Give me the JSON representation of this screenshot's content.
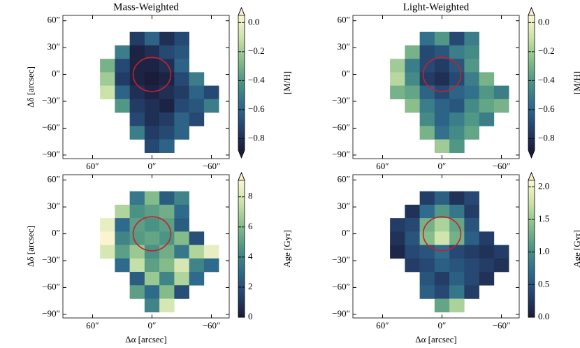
{
  "colormap": [
    "#1a1c3a",
    "#25426e",
    "#2e6b8c",
    "#4a9384",
    "#86bd8a",
    "#c9e2a8",
    "#fdf6d3"
  ],
  "chart_data": [
    {
      "type": "heatmap",
      "title": "Mass-Weighted",
      "ylabel": "Δδ [arcsec]",
      "colorbar_label": "[M/H]",
      "x": [
        45,
        30,
        15,
        0,
        -15,
        -30,
        -45,
        -60
      ],
      "y": [
        40,
        25,
        10,
        -5,
        -20,
        -35,
        -50,
        -65,
        -80
      ],
      "values": [
        [
          null,
          null,
          -0.75,
          -0.6,
          -0.8,
          -0.7,
          null,
          null
        ],
        [
          null,
          -0.5,
          -0.85,
          -0.8,
          -0.7,
          -0.65,
          null,
          null
        ],
        [
          -0.3,
          -0.7,
          -0.85,
          -0.85,
          -0.8,
          -0.6,
          null,
          null
        ],
        [
          -0.2,
          -0.75,
          -0.85,
          -0.88,
          -0.85,
          -0.7,
          -0.5,
          null
        ],
        [
          -0.1,
          -0.6,
          -0.8,
          -0.85,
          -0.8,
          -0.75,
          -0.6,
          -0.7
        ],
        [
          null,
          -0.4,
          -0.75,
          -0.8,
          -0.85,
          -0.7,
          -0.65,
          -0.5
        ],
        [
          null,
          null,
          -0.7,
          -0.8,
          -0.75,
          -0.6,
          -0.7,
          null
        ],
        [
          null,
          null,
          -0.5,
          -0.75,
          -0.7,
          -0.6,
          null,
          null
        ],
        [
          null,
          null,
          null,
          -0.7,
          -0.6,
          null,
          null,
          null
        ]
      ],
      "xlim": [
        90,
        -78
      ],
      "ylim": [
        -94,
        66
      ],
      "xticks": [
        {
          "value": 60,
          "label": "60″"
        },
        {
          "value": 0,
          "label": "0″"
        },
        {
          "value": -60,
          "label": "−60″"
        }
      ],
      "yticks": [
        {
          "value": 60,
          "label": "60″"
        },
        {
          "value": 30,
          "label": "30″"
        },
        {
          "value": 0,
          "label": "0″"
        },
        {
          "value": -30,
          "label": "−30″"
        },
        {
          "value": -60,
          "label": "−60″"
        },
        {
          "value": -90,
          "label": "−90″"
        }
      ],
      "clim": [
        -0.88,
        0.05
      ],
      "cticks": [
        {
          "value": 0,
          "label": "0.0"
        },
        {
          "value": -0.2,
          "label": "−0.2"
        },
        {
          "value": -0.4,
          "label": "−0.4"
        },
        {
          "value": -0.6,
          "label": "−0.6"
        },
        {
          "value": -0.8,
          "label": "−0.8"
        }
      ],
      "extend": "both",
      "circle": {
        "x": 0,
        "y": 0,
        "r": 19,
        "color": "#c8202a"
      }
    },
    {
      "type": "heatmap",
      "title": "Light-Weighted",
      "colorbar_label": "[M/H]",
      "x": [
        45,
        30,
        15,
        0,
        -15,
        -30,
        -45,
        -60
      ],
      "y": [
        40,
        25,
        10,
        -5,
        -20,
        -35,
        -50,
        -65,
        -80
      ],
      "values": [
        [
          null,
          null,
          -0.55,
          -0.4,
          -0.7,
          -0.5,
          null,
          null
        ],
        [
          null,
          -0.3,
          -0.7,
          -0.65,
          -0.5,
          -0.45,
          null,
          null
        ],
        [
          -0.2,
          -0.5,
          -0.7,
          -0.75,
          -0.65,
          -0.4,
          null,
          null
        ],
        [
          -0.15,
          -0.45,
          -0.75,
          -0.8,
          -0.7,
          -0.5,
          -0.3,
          null
        ],
        [
          -0.3,
          -0.35,
          -0.6,
          -0.7,
          -0.6,
          -0.55,
          -0.4,
          -0.5
        ],
        [
          null,
          -0.25,
          -0.5,
          -0.6,
          -0.65,
          -0.45,
          -0.35,
          -0.3
        ],
        [
          null,
          null,
          -0.45,
          -0.6,
          -0.5,
          -0.4,
          -0.5,
          null
        ],
        [
          null,
          null,
          -0.3,
          -0.55,
          -0.45,
          -0.35,
          null,
          null
        ],
        [
          null,
          null,
          null,
          -0.2,
          -0.4,
          null,
          null,
          null
        ]
      ],
      "xlim": [
        90,
        -78
      ],
      "ylim": [
        -94,
        66
      ],
      "xticks": [
        {
          "value": 60,
          "label": "60″"
        },
        {
          "value": 0,
          "label": "0″"
        },
        {
          "value": -60,
          "label": "−60″"
        }
      ],
      "yticks": [
        {
          "value": 60,
          "label": "60″"
        },
        {
          "value": 30,
          "label": "30″"
        },
        {
          "value": 0,
          "label": "0″"
        },
        {
          "value": -30,
          "label": "−30″"
        },
        {
          "value": -60,
          "label": "−60″"
        },
        {
          "value": -90,
          "label": "−90″"
        }
      ],
      "clim": [
        -0.88,
        0.05
      ],
      "cticks": [
        {
          "value": 0,
          "label": "0.0"
        },
        {
          "value": -0.2,
          "label": "−0.2"
        },
        {
          "value": -0.4,
          "label": "−0.4"
        },
        {
          "value": -0.6,
          "label": "−0.6"
        },
        {
          "value": -0.8,
          "label": "−0.8"
        }
      ],
      "extend": "both",
      "circle": {
        "x": 0,
        "y": 0,
        "r": 19,
        "color": "#c8202a"
      }
    },
    {
      "type": "heatmap",
      "ylabel": "Δδ [arcsec]",
      "xlabel": "Δα [arcsec]",
      "colorbar_label": "Age [Gyr]",
      "x": [
        45,
        30,
        15,
        0,
        -15,
        -30,
        -45,
        -60
      ],
      "y": [
        40,
        25,
        10,
        -5,
        -20,
        -35,
        -50,
        -65,
        -80
      ],
      "values": [
        [
          null,
          null,
          3.5,
          6,
          2.5,
          4,
          null,
          null
        ],
        [
          null,
          7,
          4.5,
          5,
          5.5,
          3,
          null,
          null
        ],
        [
          8.5,
          3,
          5,
          4.5,
          5,
          2.5,
          null,
          null
        ],
        [
          9,
          4,
          4.8,
          5.2,
          4.6,
          6,
          2,
          null
        ],
        [
          8,
          5,
          6.5,
          4.5,
          5.5,
          3.5,
          7,
          8.5
        ],
        [
          null,
          3,
          7.5,
          5,
          6,
          8,
          4,
          3
        ],
        [
          null,
          null,
          2.5,
          6.5,
          4,
          7,
          3,
          null
        ],
        [
          null,
          null,
          5,
          3,
          6,
          2,
          null,
          null
        ],
        [
          null,
          null,
          null,
          4,
          8,
          null,
          null,
          null
        ]
      ],
      "xlim": [
        90,
        -78
      ],
      "ylim": [
        -94,
        66
      ],
      "xticks": [
        {
          "value": 60,
          "label": "60″"
        },
        {
          "value": 0,
          "label": "0″"
        },
        {
          "value": -60,
          "label": "−60″"
        }
      ],
      "yticks": [
        {
          "value": 60,
          "label": "60″"
        },
        {
          "value": 30,
          "label": "30″"
        },
        {
          "value": 0,
          "label": "0″"
        },
        {
          "value": -30,
          "label": "−30″"
        },
        {
          "value": -60,
          "label": "−60″"
        },
        {
          "value": -90,
          "label": "−90″"
        }
      ],
      "clim": [
        0,
        9.1
      ],
      "cticks": [
        0,
        2,
        4,
        6,
        8
      ],
      "extend": "max",
      "circle": {
        "x": 0,
        "y": 0,
        "r": 19,
        "color": "#c8202a"
      }
    },
    {
      "type": "heatmap",
      "xlabel": "Δα [arcsec]",
      "colorbar_label": "Age [Gyr]",
      "x": [
        45,
        30,
        15,
        0,
        -15,
        -30,
        -45,
        -60
      ],
      "y": [
        40,
        25,
        10,
        -5,
        -20,
        -35,
        -50,
        -65,
        -80
      ],
      "values": [
        [
          null,
          null,
          0.3,
          0.6,
          0.2,
          0.4,
          null,
          null
        ],
        [
          null,
          0.2,
          0.7,
          1.1,
          0.8,
          0.3,
          null,
          null
        ],
        [
          0.3,
          0.4,
          1.3,
          1.6,
          1.2,
          0.5,
          null,
          null
        ],
        [
          0.2,
          0.5,
          1.4,
          1.8,
          1.3,
          0.6,
          0.3,
          null
        ],
        [
          0.1,
          0.4,
          0.5,
          0.7,
          0.4,
          0.3,
          0.2,
          0.3
        ],
        [
          null,
          0.3,
          0.4,
          0.6,
          0.5,
          0.4,
          0.3,
          0.2
        ],
        [
          null,
          null,
          0.5,
          0.3,
          0.6,
          0.4,
          0.2,
          null
        ],
        [
          null,
          null,
          0.6,
          0.4,
          0.8,
          0.3,
          null,
          null
        ],
        [
          null,
          null,
          null,
          1.2,
          1.6,
          null,
          null,
          null
        ]
      ],
      "xlim": [
        90,
        -78
      ],
      "ylim": [
        -94,
        66
      ],
      "xticks": [
        {
          "value": 60,
          "label": "60″"
        },
        {
          "value": 0,
          "label": "0″"
        },
        {
          "value": -60,
          "label": "−60″"
        }
      ],
      "yticks": [
        {
          "value": 60,
          "label": "60″"
        },
        {
          "value": 30,
          "label": "30″"
        },
        {
          "value": 0,
          "label": "0″"
        },
        {
          "value": -30,
          "label": "−30″"
        },
        {
          "value": -60,
          "label": "−60″"
        },
        {
          "value": -90,
          "label": "−90″"
        }
      ],
      "clim": [
        0,
        2.1
      ],
      "cticks": [
        {
          "value": 0,
          "label": "0.0"
        },
        0.5,
        {
          "value": 1,
          "label": "1.0"
        },
        1.5,
        {
          "value": 2,
          "label": "2.0"
        }
      ],
      "extend": "max",
      "circle": {
        "x": 0,
        "y": 0,
        "r": 19,
        "color": "#c8202a"
      }
    }
  ]
}
